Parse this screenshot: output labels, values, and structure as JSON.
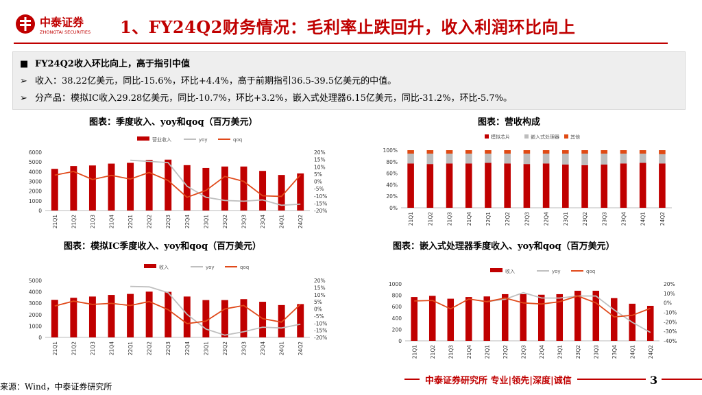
{
  "header": {
    "logo_text": "中泰证券",
    "logo_sub": "ZHONGTAI SECURITIES",
    "title": "1、FY24Q2财务情况：毛利率止跌回升，收入利润环比向上"
  },
  "summary": {
    "heading": "FY24Q2收入环比向上，高于指引中值",
    "bullets": [
      "收入：38.22亿美元，同比-15.6%，环比+4.4%，高于前期指引36.5-39.5亿美元的中值。",
      "分产品：模拟IC收入29.28亿美元，同比-10.7%，环比+3.2%，嵌入式处理器6.15亿美元，同比-31.2%，环比-5.7%。"
    ],
    "heading_marker": "■",
    "bullet_marker": "➢"
  },
  "colors": {
    "bar": "#c00000",
    "yoy": "#bfbfbf",
    "qoq": "#e0491a",
    "grey": "#bdbdbd",
    "other": "#e04a14",
    "accent": "#c00000"
  },
  "chart_data": [
    {
      "type": "bar",
      "caption": "图表：季度收入、yoy和qoq（百万美元）",
      "categories": [
        "21Q1",
        "21Q2",
        "21Q3",
        "21Q4",
        "22Q1",
        "22Q2",
        "22Q3",
        "22Q4",
        "23Q1",
        "23Q2",
        "23Q3",
        "23Q4",
        "24Q1",
        "24Q2"
      ],
      "legend": [
        "营业收入",
        "yoy",
        "qoq"
      ],
      "series": [
        {
          "name": "营业收入",
          "kind": "bar",
          "axis": "left",
          "values": [
            4290,
            4580,
            4640,
            4830,
            4910,
            5210,
            5240,
            4670,
            4380,
            4530,
            4530,
            4080,
            3660,
            3822
          ]
        },
        {
          "name": "yoy",
          "kind": "line",
          "axis": "right",
          "values": [
            null,
            null,
            null,
            null,
            14.5,
            13.7,
            12.9,
            -3.3,
            -10.9,
            -13.1,
            -13.6,
            -12.7,
            -16.4,
            -15.6
          ]
        },
        {
          "name": "qoq",
          "kind": "line",
          "axis": "right",
          "values": [
            4.3,
            6.8,
            1.3,
            4.1,
            1.6,
            6.1,
            0.6,
            -10.9,
            -6.2,
            3.4,
            0.0,
            -9.9,
            -10.3,
            4.4
          ]
        }
      ],
      "ylim": [
        0,
        6000
      ],
      "yticks": [
        "0",
        "1000",
        "2000",
        "3000",
        "4000",
        "5000",
        "6000"
      ],
      "y2lim": [
        -20,
        20
      ],
      "y2ticks": [
        "-20%",
        "-15%",
        "-10%",
        "-5%",
        "0%",
        "5%",
        "10%",
        "15%",
        "20%"
      ]
    },
    {
      "type": "bar",
      "caption": "图表：营收构成",
      "stacked": true,
      "categories": [
        "21Q1",
        "21Q2",
        "21Q3",
        "21Q4",
        "22Q1",
        "22Q2",
        "22Q3",
        "22Q4",
        "23Q1",
        "23Q2",
        "23Q3",
        "23Q4",
        "24Q1",
        "24Q2"
      ],
      "legend": [
        "模拟芯片",
        "嵌入式处理器",
        "其他"
      ],
      "series": [
        {
          "name": "模拟芯片",
          "values": [
            77,
            76,
            77,
            77,
            78,
            77,
            76,
            77,
            75,
            74,
            75,
            77,
            78,
            77
          ]
        },
        {
          "name": "嵌入式处理器",
          "values": [
            17,
            18,
            17,
            17,
            16,
            17,
            18,
            17,
            19,
            20,
            19,
            17,
            16,
            16
          ]
        },
        {
          "name": "其他",
          "values": [
            6,
            6,
            6,
            6,
            6,
            6,
            6,
            6,
            6,
            6,
            6,
            6,
            6,
            7
          ]
        }
      ],
      "ylim": [
        0,
        100
      ],
      "yticks": [
        "0%",
        "20%",
        "40%",
        "60%",
        "80%",
        "100%"
      ]
    },
    {
      "type": "bar",
      "caption": "图表：模拟IC季度收入、yoy和qoq（百万美元）",
      "categories": [
        "21Q1",
        "21Q2",
        "21Q3",
        "21Q4",
        "22Q1",
        "22Q2",
        "22Q3",
        "22Q4",
        "23Q1",
        "23Q2",
        "23Q3",
        "23Q4",
        "24Q1",
        "24Q2"
      ],
      "legend": [
        "收入",
        "yoy",
        "qoq"
      ],
      "series": [
        {
          "name": "收入",
          "kind": "bar",
          "axis": "left",
          "values": [
            3300,
            3480,
            3590,
            3730,
            3820,
            4020,
            4000,
            3590,
            3280,
            3280,
            3360,
            3130,
            2840,
            2928
          ]
        },
        {
          "name": "yoy",
          "kind": "line",
          "axis": "right",
          "values": [
            null,
            null,
            null,
            null,
            15.8,
            15.5,
            11.4,
            -3.8,
            -14.1,
            -18.4,
            -16.0,
            -12.8,
            -13.4,
            -10.7
          ]
        },
        {
          "name": "qoq",
          "kind": "line",
          "axis": "right",
          "values": [
            2.0,
            5.5,
            3.2,
            3.9,
            2.4,
            5.2,
            -0.5,
            -10.3,
            -8.6,
            0.0,
            2.4,
            -6.8,
            -9.3,
            3.2
          ]
        }
      ],
      "ylim": [
        0,
        5000
      ],
      "yticks": [
        "0",
        "1000",
        "2000",
        "3000",
        "4000",
        "5000"
      ],
      "y2lim": [
        -20,
        20
      ],
      "y2ticks": [
        "-20%",
        "-15%",
        "-10%",
        "-5%",
        "0%",
        "5%",
        "10%",
        "15%",
        "20%"
      ]
    },
    {
      "type": "bar",
      "caption": "图表：嵌入式处理器季度收入、yoy和qoq（百万美元）",
      "categories": [
        "21Q1",
        "21Q2",
        "21Q3",
        "21Q4",
        "22Q1",
        "22Q2",
        "22Q3",
        "22Q4",
        "23Q1",
        "23Q2",
        "23Q3",
        "23Q4",
        "24Q1",
        "24Q2"
      ],
      "legend": [
        "收入",
        "yoy",
        "qoq"
      ],
      "series": [
        {
          "name": "收入",
          "kind": "bar",
          "axis": "left",
          "values": [
            770,
            790,
            740,
            770,
            780,
            820,
            820,
            810,
            820,
            880,
            880,
            750,
            652,
            615
          ]
        },
        {
          "name": "yoy",
          "kind": "line",
          "axis": "right",
          "values": [
            null,
            null,
            null,
            null,
            1.3,
            3.8,
            10.8,
            5.2,
            5.1,
            7.3,
            7.3,
            -7.4,
            -20.5,
            -31.2
          ]
        },
        {
          "name": "qoq",
          "kind": "line",
          "axis": "right",
          "values": [
            2.0,
            2.6,
            -6.3,
            4.1,
            1.3,
            5.1,
            0.0,
            -1.2,
            1.2,
            7.3,
            0.0,
            -14.8,
            -13.1,
            -5.7
          ]
        }
      ],
      "ylim": [
        0,
        1000
      ],
      "yticks": [
        "0",
        "200",
        "400",
        "600",
        "800",
        "1000"
      ],
      "y2lim": [
        -40,
        20
      ],
      "y2ticks": [
        "-40%",
        "-30%",
        "-20%",
        "-10%",
        "0%",
        "10%",
        "20%"
      ]
    }
  ],
  "footer": {
    "source": "来源：Wind，中泰证券研究所",
    "slogan": "中泰证券研究所 专业|领先|深度|诚信",
    "page": "3"
  }
}
